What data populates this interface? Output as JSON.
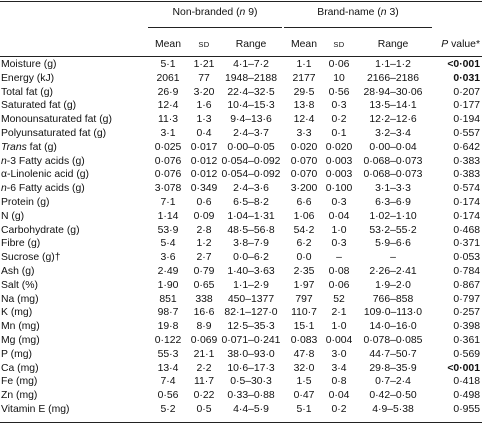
{
  "header": {
    "group1": {
      "prefix": "Non-branded (",
      "n": "n",
      "suffix": " 9)"
    },
    "group2": {
      "prefix": "Brand-name (",
      "n": "n",
      "suffix": " 3)"
    },
    "mean": "Mean",
    "sd": "SD",
    "range": "Range",
    "pvalue_p": "P",
    "pvalue_rest": " value*"
  },
  "rows": [
    {
      "label": "Moisture (g)",
      "m1": "5·1",
      "sd1": "1·21",
      "r1": "4·1–7·2",
      "m2": "1·1",
      "sd2": "0·06",
      "r2": "1·1–1·2",
      "p": "<0·001",
      "bold": true
    },
    {
      "label": "Energy (kJ)",
      "m1": "2061",
      "sd1": "77",
      "r1": "1948–2188",
      "m2": "2177",
      "sd2": "10",
      "r2": "2166–2186",
      "p": "0·031",
      "bold": true
    },
    {
      "label": "Total fat (g)",
      "m1": "26·9",
      "sd1": "3·20",
      "r1": "22·4–32·5",
      "m2": "29·5",
      "sd2": "0·56",
      "r2": "28·94–30·06",
      "p": "0·207"
    },
    {
      "label": "Saturated fat (g)",
      "m1": "12·4",
      "sd1": "1·6",
      "r1": "10·4–15·3",
      "m2": "13·8",
      "sd2": "0·3",
      "r2": "13·5–14·1",
      "p": "0·177"
    },
    {
      "label": "Monounsaturated fat (g)",
      "m1": "11·3",
      "sd1": "1·3",
      "r1": "9·4–13·6",
      "m2": "12·4",
      "sd2": "0·2",
      "r2": "12·2–12·6",
      "p": "0·194"
    },
    {
      "label": "Polyunsaturated fat (g)",
      "m1": "3·1",
      "sd1": "0·4",
      "r1": "2·4–3·7",
      "m2": "3·3",
      "sd2": "0·1",
      "r2": "3·2–3·4",
      "p": "0·557"
    },
    {
      "label": "Trans fat (g)",
      "labelItalic": "Trans",
      "labelRest": " fat (g)",
      "m1": "0·025",
      "sd1": "0·017",
      "r1": "0·00–0·05",
      "m2": "0·020",
      "sd2": "0·020",
      "r2": "0·00–0·04",
      "p": "0·642"
    },
    {
      "label": "n-3 Fatty acids (g)",
      "labelItalic": "n",
      "labelRest": "-3 Fatty acids (g)",
      "m1": "0·076",
      "sd1": "0·012",
      "r1": "0·054–0·092",
      "m2": "0·070",
      "sd2": "0·003",
      "r2": "0·068–0·073",
      "p": "0·383"
    },
    {
      "label": "α-Linolenic acid (g)",
      "m1": "0·076",
      "sd1": "0·012",
      "r1": "0·054–0·092",
      "m2": "0·070",
      "sd2": "0·003",
      "r2": "0·068–0·073",
      "p": "0·383"
    },
    {
      "label": "n-6 Fatty acids (g)",
      "labelItalic": "n",
      "labelRest": "-6 Fatty acids (g)",
      "m1": "3·078",
      "sd1": "0·349",
      "r1": "2·4–3·6",
      "m2": "3·200",
      "sd2": "0·100",
      "r2": "3·1–3·3",
      "p": "0·574"
    },
    {
      "label": "Protein (g)",
      "m1": "7·1",
      "sd1": "0·6",
      "r1": "6·5–8·2",
      "m2": "6·6",
      "sd2": "0·3",
      "r2": "6·3–6·9",
      "p": "0·174"
    },
    {
      "label": "N (g)",
      "m1": "1·14",
      "sd1": "0·09",
      "r1": "1·04–1·31",
      "m2": "1·06",
      "sd2": "0·04",
      "r2": "1·02–1·10",
      "p": "0·174"
    },
    {
      "label": "Carbohydrate (g)",
      "m1": "53·9",
      "sd1": "2·8",
      "r1": "48·5–56·8",
      "m2": "54·2",
      "sd2": "1·0",
      "r2": "53·2–55·2",
      "p": "0·468"
    },
    {
      "label": "Fibre (g)",
      "m1": "5·4",
      "sd1": "1·2",
      "r1": "3·8–7·9",
      "m2": "6·2",
      "sd2": "0·3",
      "r2": "5·9–6·6",
      "p": "0·371"
    },
    {
      "label": "Sucrose (g)†",
      "m1": "3·6",
      "sd1": "2·7",
      "r1": "0·0–6·2",
      "m2": "0·0",
      "sd2": "–",
      "r2": "–",
      "p": "0·053"
    },
    {
      "label": "Ash (g)",
      "m1": "2·49",
      "sd1": "0·79",
      "r1": "1·40–3·63",
      "m2": "2·35",
      "sd2": "0·08",
      "r2": "2·26–2·41",
      "p": "0·784"
    },
    {
      "label": "Salt (%)",
      "m1": "1·90",
      "sd1": "0·65",
      "r1": "1·1–2·9",
      "m2": "1·97",
      "sd2": "0·06",
      "r2": "1·9–2·0",
      "p": "0·867"
    },
    {
      "label": "Na (mg)",
      "m1": "851",
      "sd1": "338",
      "r1": "450–1377",
      "m2": "797",
      "sd2": "52",
      "r2": "766–858",
      "p": "0·797"
    },
    {
      "label": "K (mg)",
      "m1": "98·7",
      "sd1": "16·6",
      "r1": "82·1–127·0",
      "m2": "110·7",
      "sd2": "2·1",
      "r2": "109·0–113·0",
      "p": "0·257"
    },
    {
      "label": "Mn (mg)",
      "m1": "19·8",
      "sd1": "8·9",
      "r1": "12·5–35·3",
      "m2": "15·1",
      "sd2": "1·0",
      "r2": "14·0–16·0",
      "p": "0·398"
    },
    {
      "label": "Mg (mg)",
      "m1": "0·122",
      "sd1": "0·069",
      "r1": "0·071–0·241",
      "m2": "0·083",
      "sd2": "0·004",
      "r2": "0·078–0·085",
      "p": "0·361"
    },
    {
      "label": "P (mg)",
      "m1": "55·3",
      "sd1": "21·1",
      "r1": "38·0–93·0",
      "m2": "47·8",
      "sd2": "3·0",
      "r2": "44·7–50·7",
      "p": "0·569"
    },
    {
      "label": "Ca (mg)",
      "m1": "13·4",
      "sd1": "2·2",
      "r1": "10·6–17·3",
      "m2": "32·0",
      "sd2": "3·4",
      "r2": "29·8–35·9",
      "p": "<0·001",
      "bold": true
    },
    {
      "label": "Fe (mg)",
      "m1": "7·4",
      "sd1": "11·7",
      "r1": "0·5–30·3",
      "m2": "1·5",
      "sd2": "0·8",
      "r2": "0·7–2·4",
      "p": "0·418"
    },
    {
      "label": "Zn (mg)",
      "m1": "0·56",
      "sd1": "0·22",
      "r1": "0·33–0·88",
      "m2": "0·47",
      "sd2": "0·04",
      "r2": "0·42–0·50",
      "p": "0·498"
    },
    {
      "label": "Vitamin E (mg)",
      "m1": "5·2",
      "sd1": "0·5",
      "r1": "4·4–5·9",
      "m2": "5·1",
      "sd2": "0·2",
      "r2": "4·9–5·38",
      "p": "0·955"
    }
  ]
}
